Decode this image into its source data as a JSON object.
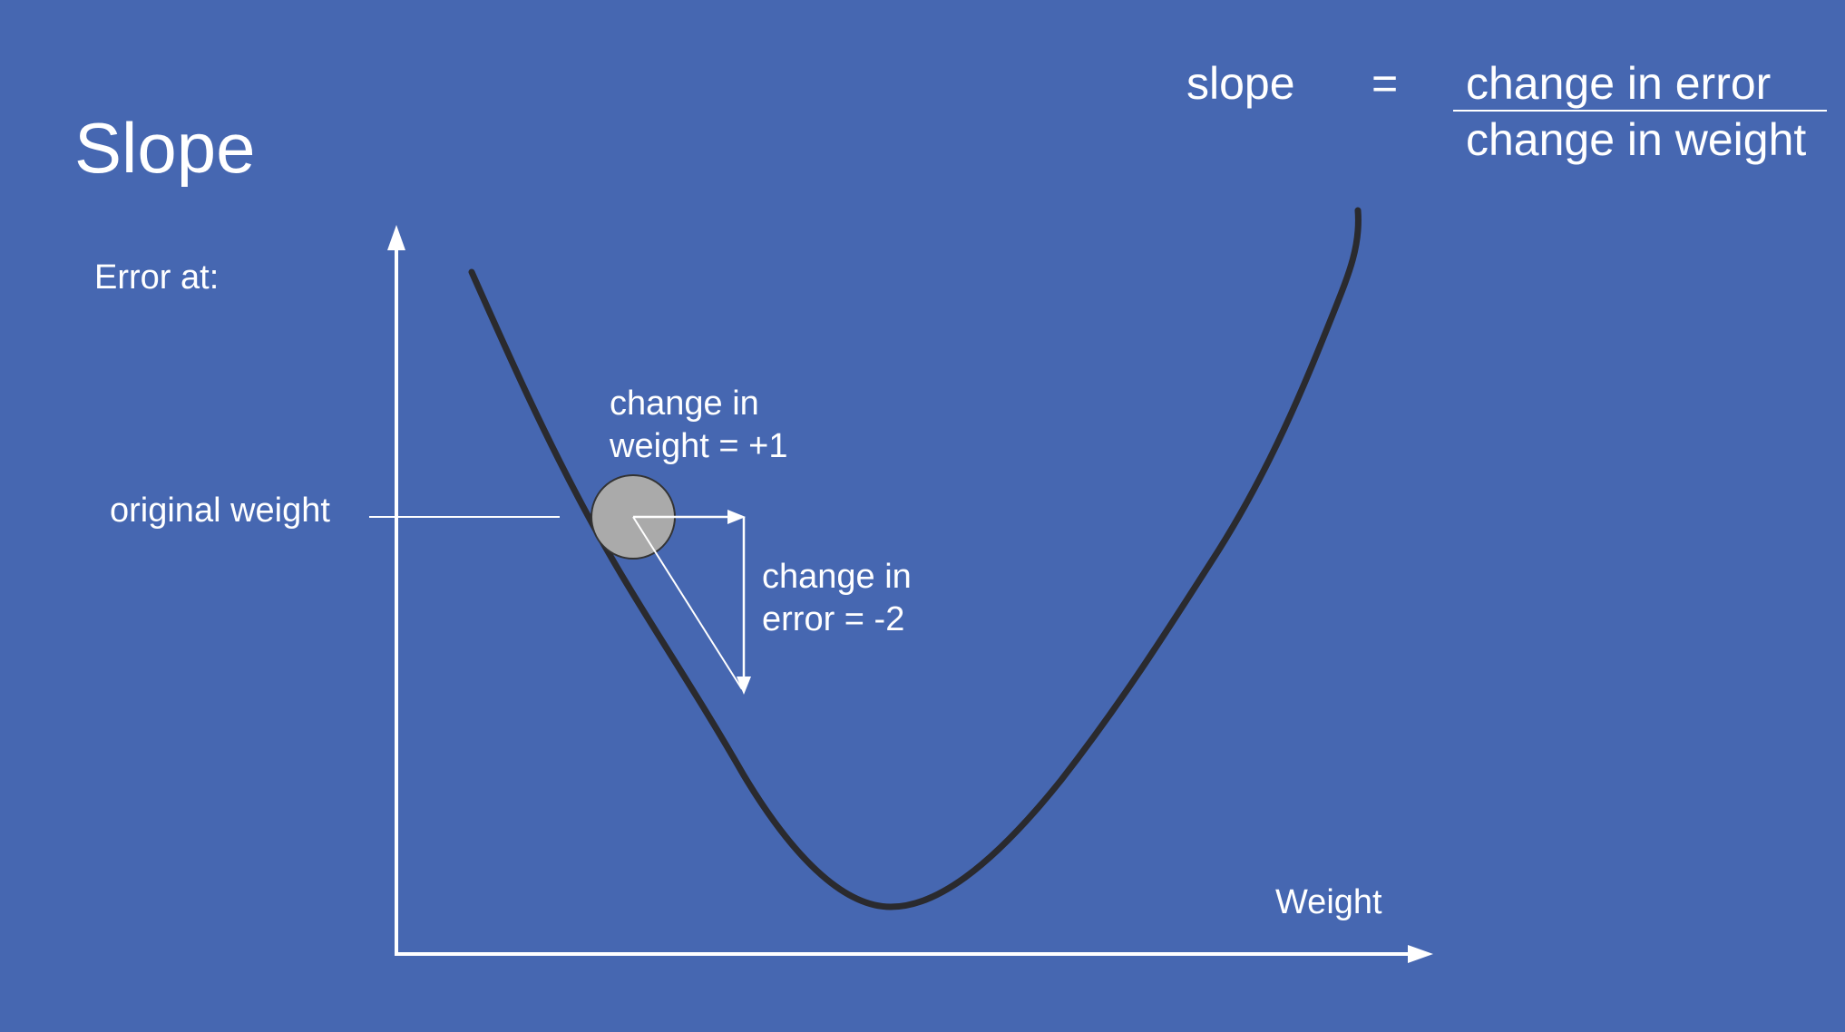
{
  "title": "Slope",
  "formula": {
    "lhs": "slope",
    "equals": "=",
    "numerator": "change in error",
    "denominator": "change in weight"
  },
  "axes": {
    "y_label": "Error at:",
    "x_label": "Weight"
  },
  "annotations": {
    "original_weight": "original weight",
    "change_in_weight_line1": "change in",
    "change_in_weight_line2": "weight = +1",
    "change_in_error_line1": "change in",
    "change_in_error_line2": "error = -2"
  },
  "colors": {
    "background": "#4667b1",
    "curve": "#2a2a2e",
    "ball": "#aaaaaa",
    "text": "#ffffff"
  }
}
